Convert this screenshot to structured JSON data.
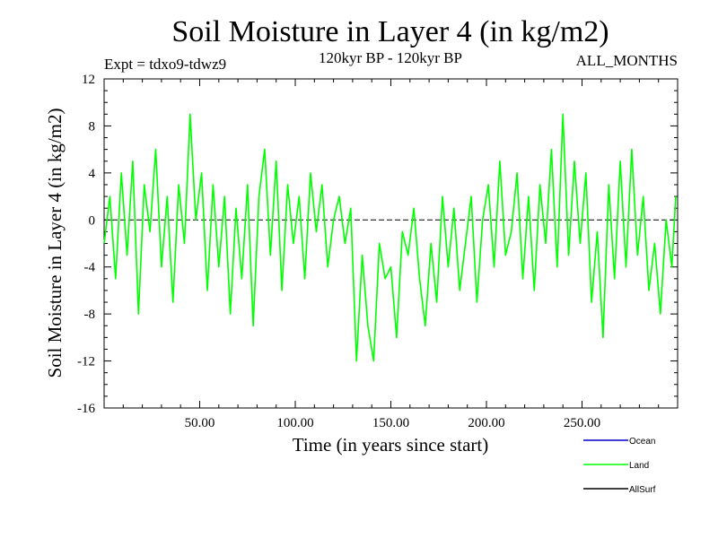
{
  "header": {
    "title": "Soil Moisture in Layer 4 (in kg/m2)",
    "expt": "Expt = tdxo9-tdwz9",
    "period": "120kyr BP - 120kyr BP",
    "months": "ALL_MONTHS"
  },
  "chart_data": {
    "type": "line",
    "xlabel": "Time (in years since start)",
    "ylabel": "Soil Moisture in Layer 4 (in kg/m2)",
    "xlim": [
      0,
      300
    ],
    "ylim": [
      -16,
      12
    ],
    "x_ticks": [
      50,
      100,
      150,
      200,
      250
    ],
    "x_tick_labels": [
      "50.00",
      "100.00",
      "150.00",
      "200.00",
      "250.00"
    ],
    "y_ticks": [
      -16,
      -12,
      -8,
      -4,
      0,
      4,
      8,
      12
    ],
    "y_tick_labels": [
      "-16",
      "-12",
      "-8",
      "-4",
      "0",
      "4",
      "8",
      "12"
    ],
    "zero_line": true,
    "grid": false,
    "legend_position": "bottom-right",
    "series": [
      {
        "name": "Land",
        "color": "#00ff00",
        "x": [
          0,
          3,
          6,
          9,
          12,
          15,
          18,
          21,
          24,
          27,
          30,
          33,
          36,
          39,
          42,
          45,
          48,
          51,
          54,
          57,
          60,
          63,
          66,
          69,
          72,
          75,
          78,
          81,
          84,
          87,
          90,
          93,
          96,
          99,
          102,
          105,
          108,
          111,
          114,
          117,
          120,
          123,
          126,
          129,
          132,
          135,
          138,
          141,
          144,
          147,
          150,
          153,
          156,
          159,
          162,
          165,
          168,
          171,
          174,
          177,
          180,
          183,
          186,
          189,
          192,
          195,
          198,
          201,
          204,
          207,
          210,
          213,
          216,
          219,
          222,
          225,
          228,
          231,
          234,
          237,
          240,
          243,
          246,
          249,
          252,
          255,
          258,
          261,
          264,
          267,
          270,
          273,
          276,
          279,
          282,
          285,
          288,
          291,
          294,
          297,
          299
        ],
        "values": [
          -2,
          2,
          -5,
          4,
          -3,
          5,
          -8,
          3,
          -1,
          6,
          -4,
          2,
          -7,
          3,
          -2,
          9,
          0,
          4,
          -6,
          3,
          -4,
          2,
          -8,
          1,
          -5,
          3,
          -9,
          2,
          6,
          -3,
          5,
          -6,
          3,
          -2,
          2,
          -5,
          4,
          -1,
          3,
          -4,
          0,
          2,
          -2,
          1,
          -12,
          -3,
          -9,
          -12,
          -2,
          -5,
          -4,
          -10,
          -1,
          -3,
          1,
          -5,
          -9,
          -2,
          -7,
          2,
          -4,
          1,
          -6,
          -2,
          2,
          -7,
          0,
          3,
          -4,
          5,
          -3,
          -1,
          4,
          -5,
          2,
          -6,
          3,
          -2,
          6,
          -4,
          9,
          -3,
          5,
          -2,
          4,
          -7,
          -1,
          -10,
          3,
          -5,
          5,
          -4,
          6,
          -3,
          2,
          -6,
          -2,
          -8,
          0,
          -4,
          2
        ]
      }
    ],
    "legend": [
      {
        "name": "Ocean",
        "color": "#0000cc"
      },
      {
        "name": "Land",
        "color": "#00ff00"
      },
      {
        "name": "AllSurf",
        "color": "#000000"
      }
    ]
  }
}
